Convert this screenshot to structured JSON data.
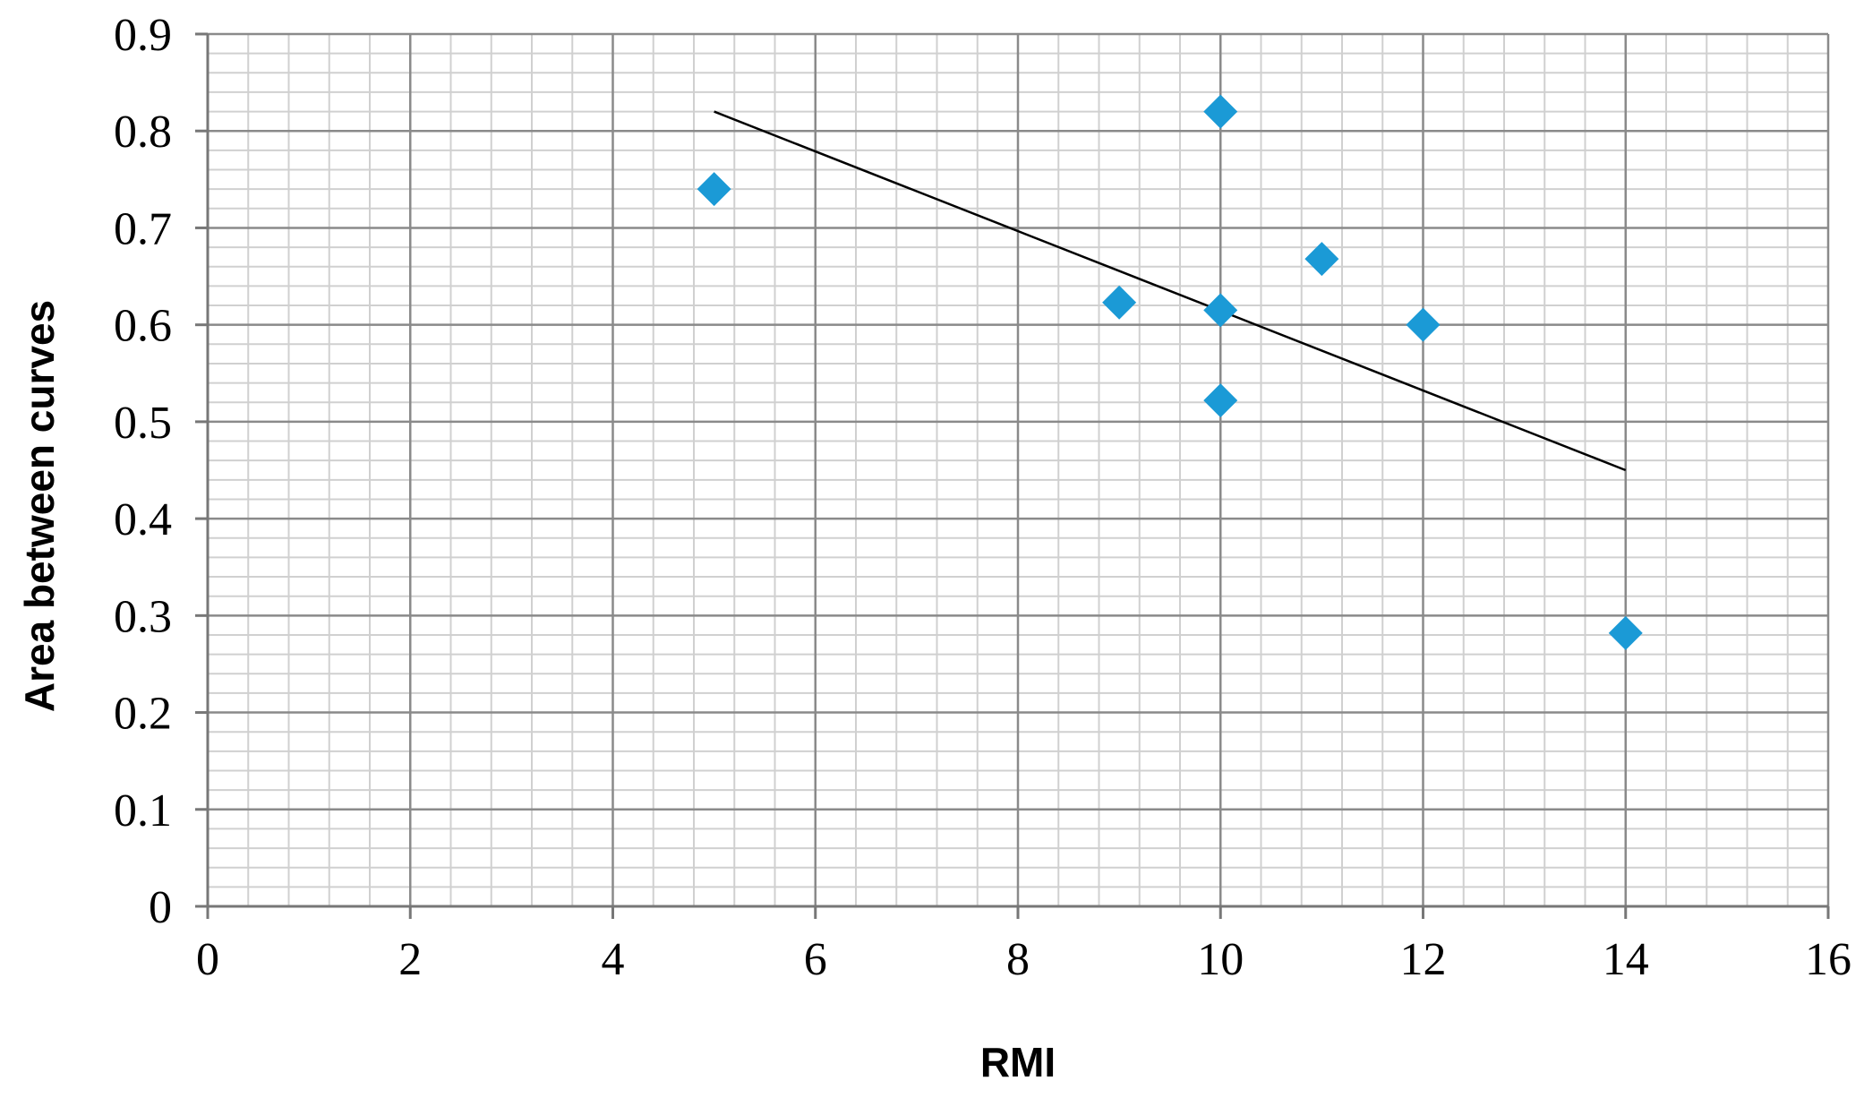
{
  "chart_data": {
    "type": "scatter",
    "title": "",
    "xlabel": "RMI",
    "ylabel": "Area between curves",
    "xlim": [
      0,
      16
    ],
    "ylim": [
      0,
      0.9
    ],
    "xticks": [
      "0",
      "2",
      "4",
      "6",
      "8",
      "10",
      "12",
      "14",
      "16"
    ],
    "yticks": [
      "0",
      "0.1",
      "0.2",
      "0.3",
      "0.4",
      "0.5",
      "0.6",
      "0.7",
      "0.8",
      "0.9"
    ],
    "x_major_step": 2,
    "x_minor_step": 0.4,
    "y_major_step": 0.1,
    "y_minor_step": 0.02,
    "grid": true,
    "legend": "none",
    "series": [
      {
        "marker": "diamond",
        "color": "#1b9ad6",
        "points": [
          {
            "x": 5,
            "y": 0.74
          },
          {
            "x": 9,
            "y": 0.623
          },
          {
            "x": 10,
            "y": 0.82
          },
          {
            "x": 10,
            "y": 0.615
          },
          {
            "x": 10,
            "y": 0.522
          },
          {
            "x": 11,
            "y": 0.668
          },
          {
            "x": 12,
            "y": 0.6
          },
          {
            "x": 14,
            "y": 0.282
          }
        ]
      }
    ],
    "trendline": {
      "type": "linear",
      "color": "#000000",
      "x": [
        5,
        14
      ],
      "y": [
        0.82,
        0.45
      ]
    }
  }
}
